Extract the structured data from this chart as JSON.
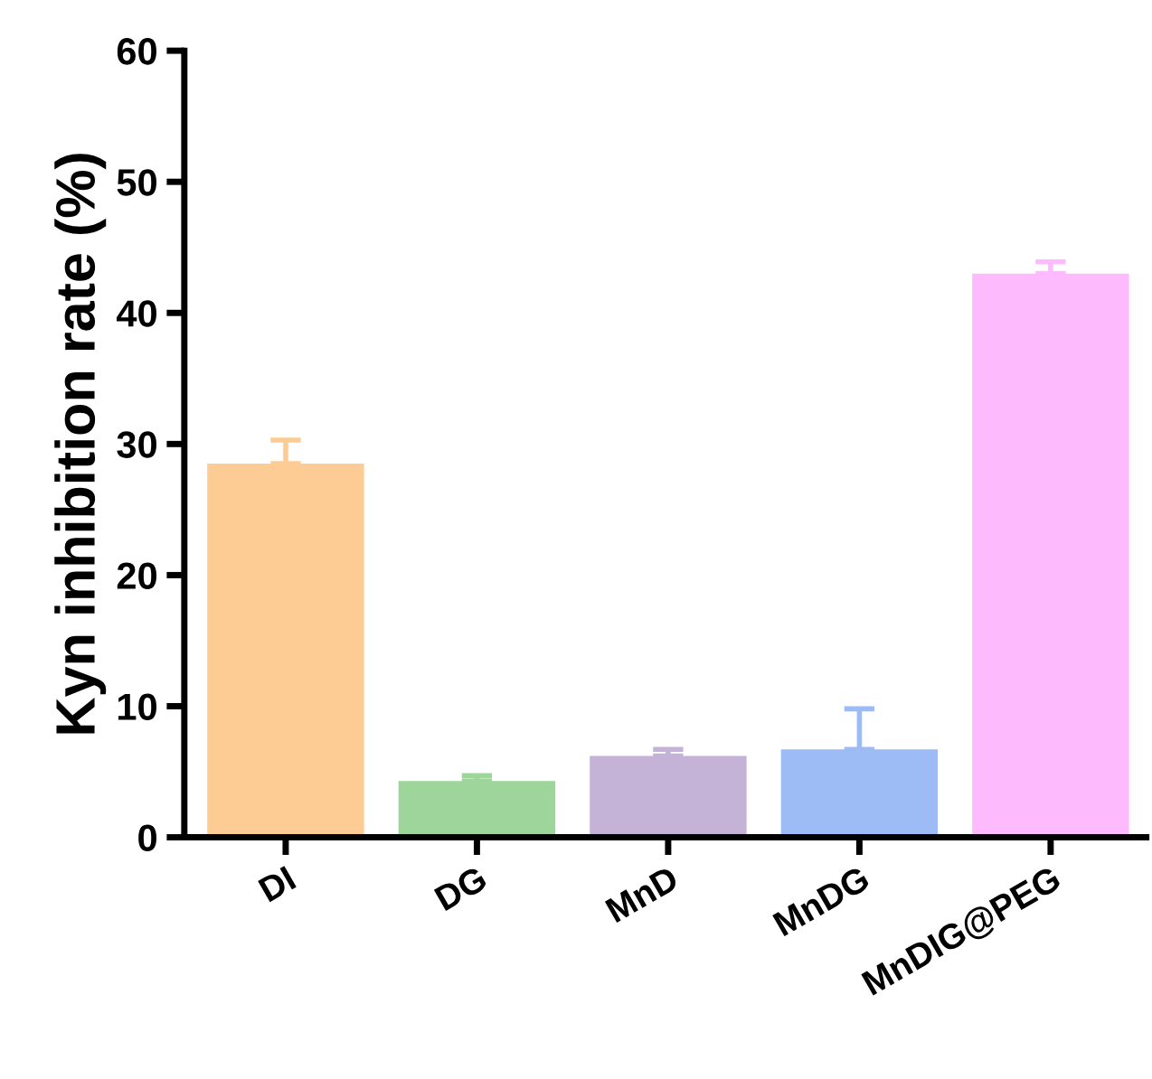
{
  "chart_data": {
    "type": "bar",
    "ylabel": "Kyn inhibition rate (%)",
    "categories": [
      "DI",
      "DG",
      "MnD",
      "MnDG",
      "MnDIG@PEG"
    ],
    "values": [
      28.5,
      4.3,
      6.2,
      6.7,
      43.0
    ],
    "errors": [
      [
        28.5,
        30.3
      ],
      [
        4.3,
        4.7
      ],
      [
        6.2,
        6.7
      ],
      [
        6.7,
        9.8
      ],
      [
        43.0,
        43.9
      ]
    ],
    "colors": [
      "#fdcb94",
      "#9dd59b",
      "#c4b3d6",
      "#9dbcf5",
      "#fdbbfd"
    ],
    "ylim": [
      0,
      60
    ],
    "yticks": [
      0,
      10,
      20,
      30,
      40,
      50,
      60
    ],
    "grid": false,
    "legend": false
  }
}
